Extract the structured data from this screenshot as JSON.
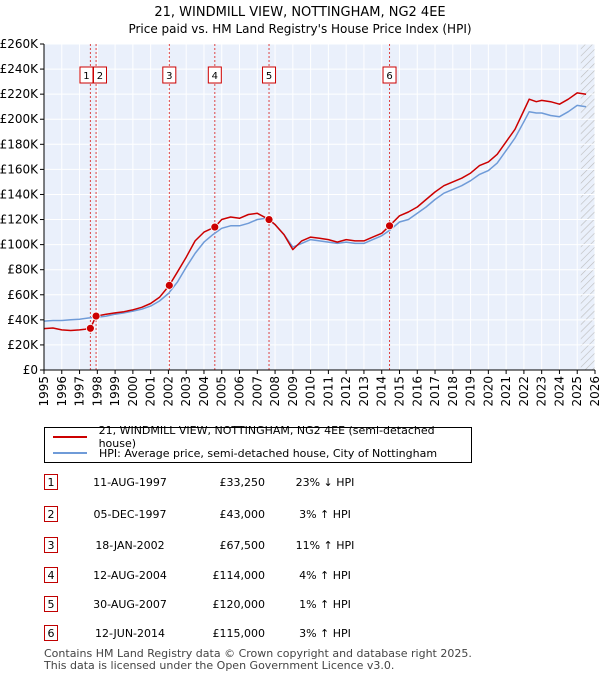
{
  "chart_data": {
    "type": "line",
    "title": "21, WINDMILL VIEW, NOTTINGHAM, NG2 4EE",
    "subtitle": "Price paid vs. HM Land Registry's House Price Index (HPI)",
    "xlabel": "",
    "ylabel": "",
    "xlim": [
      1995,
      2026
    ],
    "ylim": [
      0,
      260000
    ],
    "x_ticks": [
      "1995",
      "1996",
      "1997",
      "1998",
      "1999",
      "2000",
      "2001",
      "2002",
      "2003",
      "2004",
      "2005",
      "2006",
      "2007",
      "2008",
      "2009",
      "2010",
      "2011",
      "2012",
      "2013",
      "2014",
      "2015",
      "2016",
      "2017",
      "2018",
      "2019",
      "2020",
      "2021",
      "2022",
      "2023",
      "2024",
      "2025",
      "2026"
    ],
    "y_ticks": [
      {
        "value": 0,
        "label": "£0"
      },
      {
        "value": 20000,
        "label": "£20K"
      },
      {
        "value": 40000,
        "label": "£40K"
      },
      {
        "value": 60000,
        "label": "£60K"
      },
      {
        "value": 80000,
        "label": "£80K"
      },
      {
        "value": 100000,
        "label": "£100K"
      },
      {
        "value": 120000,
        "label": "£120K"
      },
      {
        "value": 140000,
        "label": "£140K"
      },
      {
        "value": 160000,
        "label": "£160K"
      },
      {
        "value": 180000,
        "label": "£180K"
      },
      {
        "value": 200000,
        "label": "£200K"
      },
      {
        "value": 220000,
        "label": "£220K"
      },
      {
        "value": 240000,
        "label": "£240K"
      },
      {
        "value": 260000,
        "label": "£260K"
      }
    ],
    "grid": true,
    "future_hatch_from": 2025.2,
    "series": [
      {
        "name": "21, WINDMILL VIEW, NOTTINGHAM, NG2 4EE (semi-detached house)",
        "color": "#cc0000",
        "points": [
          [
            1995.0,
            33000
          ],
          [
            1995.5,
            33500
          ],
          [
            1996.0,
            32000
          ],
          [
            1996.5,
            31500
          ],
          [
            1997.0,
            32000
          ],
          [
            1997.3,
            32500
          ],
          [
            1997.61,
            33250
          ],
          [
            1997.93,
            43000
          ],
          [
            1998.5,
            44500
          ],
          [
            1999.0,
            45500
          ],
          [
            1999.5,
            46500
          ],
          [
            2000.0,
            48000
          ],
          [
            2000.5,
            50000
          ],
          [
            2001.0,
            53000
          ],
          [
            2001.5,
            58000
          ],
          [
            2002.05,
            67500
          ],
          [
            2002.5,
            78000
          ],
          [
            2003.0,
            90000
          ],
          [
            2003.5,
            103000
          ],
          [
            2004.0,
            110000
          ],
          [
            2004.61,
            114000
          ],
          [
            2005.0,
            120000
          ],
          [
            2005.5,
            122000
          ],
          [
            2006.0,
            121000
          ],
          [
            2006.5,
            124000
          ],
          [
            2007.0,
            125000
          ],
          [
            2007.66,
            120000
          ],
          [
            2008.0,
            116000
          ],
          [
            2008.5,
            108000
          ],
          [
            2009.0,
            96000
          ],
          [
            2009.5,
            103000
          ],
          [
            2010.0,
            106000
          ],
          [
            2010.5,
            105000
          ],
          [
            2011.0,
            104000
          ],
          [
            2011.5,
            102000
          ],
          [
            2012.0,
            104000
          ],
          [
            2012.5,
            103000
          ],
          [
            2013.0,
            103000
          ],
          [
            2013.5,
            106000
          ],
          [
            2014.0,
            109000
          ],
          [
            2014.44,
            115000
          ],
          [
            2015.0,
            123000
          ],
          [
            2015.5,
            126000
          ],
          [
            2016.0,
            130000
          ],
          [
            2016.5,
            136000
          ],
          [
            2017.0,
            142000
          ],
          [
            2017.5,
            147000
          ],
          [
            2018.0,
            150000
          ],
          [
            2018.5,
            153000
          ],
          [
            2019.0,
            157000
          ],
          [
            2019.5,
            163000
          ],
          [
            2020.0,
            166000
          ],
          [
            2020.5,
            172000
          ],
          [
            2021.0,
            182000
          ],
          [
            2021.5,
            192000
          ],
          [
            2022.0,
            207000
          ],
          [
            2022.3,
            216000
          ],
          [
            2022.7,
            214000
          ],
          [
            2023.0,
            215000
          ],
          [
            2023.5,
            214000
          ],
          [
            2024.0,
            212000
          ],
          [
            2024.5,
            216000
          ],
          [
            2025.0,
            221000
          ],
          [
            2025.5,
            220000
          ]
        ]
      },
      {
        "name": "HPI: Average price, semi-detached house, City of Nottingham",
        "color": "#6f9bd8",
        "points": [
          [
            1995.0,
            39000
          ],
          [
            1995.5,
            39500
          ],
          [
            1996.0,
            39500
          ],
          [
            1996.5,
            40000
          ],
          [
            1997.0,
            40500
          ],
          [
            1997.5,
            41500
          ],
          [
            1998.0,
            42000
          ],
          [
            1998.5,
            43000
          ],
          [
            1999.0,
            44500
          ],
          [
            1999.5,
            45500
          ],
          [
            2000.0,
            47000
          ],
          [
            2000.5,
            48500
          ],
          [
            2001.0,
            51000
          ],
          [
            2001.5,
            55000
          ],
          [
            2002.0,
            61000
          ],
          [
            2002.5,
            70000
          ],
          [
            2003.0,
            82000
          ],
          [
            2003.5,
            93000
          ],
          [
            2004.0,
            102000
          ],
          [
            2004.5,
            108000
          ],
          [
            2005.0,
            113000
          ],
          [
            2005.5,
            115000
          ],
          [
            2006.0,
            115000
          ],
          [
            2006.5,
            117000
          ],
          [
            2007.0,
            120000
          ],
          [
            2007.5,
            121000
          ],
          [
            2008.0,
            116000
          ],
          [
            2008.5,
            108000
          ],
          [
            2009.0,
            98000
          ],
          [
            2009.5,
            101000
          ],
          [
            2010.0,
            104000
          ],
          [
            2010.5,
            103000
          ],
          [
            2011.0,
            102000
          ],
          [
            2011.5,
            101000
          ],
          [
            2012.0,
            102000
          ],
          [
            2012.5,
            101000
          ],
          [
            2013.0,
            101000
          ],
          [
            2013.5,
            104000
          ],
          [
            2014.0,
            107000
          ],
          [
            2014.5,
            112000
          ],
          [
            2015.0,
            118000
          ],
          [
            2015.5,
            120000
          ],
          [
            2016.0,
            125000
          ],
          [
            2016.5,
            130000
          ],
          [
            2017.0,
            136000
          ],
          [
            2017.5,
            141000
          ],
          [
            2018.0,
            144000
          ],
          [
            2018.5,
            147000
          ],
          [
            2019.0,
            151000
          ],
          [
            2019.5,
            156000
          ],
          [
            2020.0,
            159000
          ],
          [
            2020.5,
            165000
          ],
          [
            2021.0,
            175000
          ],
          [
            2021.5,
            185000
          ],
          [
            2022.0,
            198000
          ],
          [
            2022.3,
            206000
          ],
          [
            2022.7,
            205000
          ],
          [
            2023.0,
            205000
          ],
          [
            2023.5,
            203000
          ],
          [
            2024.0,
            202000
          ],
          [
            2024.5,
            206000
          ],
          [
            2025.0,
            211000
          ],
          [
            2025.5,
            210000
          ]
        ]
      }
    ],
    "sales": [
      {
        "label": "1",
        "x": 1997.61,
        "price": 33250
      },
      {
        "label": "2",
        "x": 1997.93,
        "price": 43000
      },
      {
        "label": "3",
        "x": 2002.05,
        "price": 67500
      },
      {
        "label": "4",
        "x": 2004.61,
        "price": 114000
      },
      {
        "label": "5",
        "x": 2007.66,
        "price": 120000
      },
      {
        "label": "6",
        "x": 2014.44,
        "price": 115000
      }
    ],
    "sale_label_offsets": [
      -0.22,
      0.22,
      0,
      0,
      0,
      0
    ]
  },
  "legend": {
    "property": "21, WINDMILL VIEW, NOTTINGHAM, NG2 4EE (semi-detached house)",
    "hpi": "HPI: Average price, semi-detached house, City of Nottingham",
    "property_color": "#cc0000",
    "hpi_color": "#6f9bd8"
  },
  "transactions": [
    {
      "num": "1",
      "date": "11-AUG-1997",
      "price": "£33,250",
      "rel": "23% ↓ HPI"
    },
    {
      "num": "2",
      "date": "05-DEC-1997",
      "price": "£43,000",
      "rel": "3% ↑ HPI"
    },
    {
      "num": "3",
      "date": "18-JAN-2002",
      "price": "£67,500",
      "rel": "11% ↑ HPI"
    },
    {
      "num": "4",
      "date": "12-AUG-2004",
      "price": "£114,000",
      "rel": "4% ↑ HPI"
    },
    {
      "num": "5",
      "date": "30-AUG-2007",
      "price": "£120,000",
      "rel": "1% ↑ HPI"
    },
    {
      "num": "6",
      "date": "12-JUN-2014",
      "price": "£115,000",
      "rel": "3% ↑ HPI"
    }
  ],
  "footer": {
    "line1": "Contains HM Land Registry data © Crown copyright and database right 2025.",
    "line2": "This data is licensed under the Open Government Licence v3.0."
  }
}
